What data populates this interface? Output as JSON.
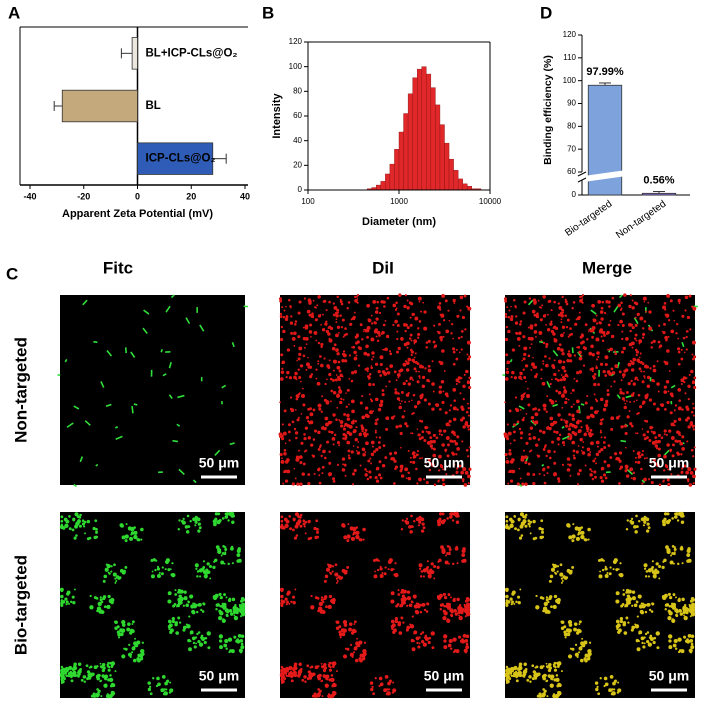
{
  "panel_labels": [
    "A",
    "B",
    "C",
    "D"
  ],
  "chart_data": [
    {
      "type": "bar",
      "orientation": "horizontal",
      "categories": [
        "BL+ICP-CLs@O₂",
        "BL",
        "ICP-CLs@O₂"
      ],
      "values": [
        -2,
        -28,
        28
      ],
      "errors": [
        4,
        3,
        5
      ],
      "colors": [
        "#ebe7dd",
        "#c4a97c",
        "#2f5cb6"
      ],
      "xlabel": "Apparent Zeta Potential (mV)",
      "xlim": [
        -40,
        40
      ],
      "xticks": [
        -40,
        -20,
        0,
        20,
        40
      ]
    },
    {
      "type": "histogram",
      "xscale": "log",
      "bins": [
        398,
        447,
        501,
        562,
        631,
        708,
        794,
        891,
        1000,
        1122,
        1259,
        1413,
        1585,
        1778,
        1995,
        2239,
        2512,
        2818,
        3162,
        3548,
        3981,
        4467,
        5012,
        5623,
        6310,
        7079,
        7943,
        8913
      ],
      "values": [
        0,
        1,
        2,
        4,
        7,
        13,
        21,
        33,
        47,
        62,
        78,
        91,
        98,
        100,
        94,
        83,
        69,
        53,
        38,
        25,
        16,
        9,
        5,
        3,
        1,
        1,
        0
      ],
      "color": "#e0282a",
      "xlabel": "Diameter (nm)",
      "ylabel": "Intensity",
      "xlim": [
        100,
        10000
      ],
      "xticks": [
        100,
        1000,
        10000
      ],
      "ylim": [
        0,
        120
      ],
      "yticks": [
        0,
        20,
        40,
        60,
        80,
        100,
        120
      ]
    },
    {
      "type": "bar",
      "orientation": "vertical",
      "categories": [
        "Bio-targeted",
        "Non-targeted"
      ],
      "values": [
        97.99,
        0.56
      ],
      "errors": [
        1,
        0.6
      ],
      "value_labels": [
        "97.99%",
        "0.56%"
      ],
      "colors": [
        "#7ea2dc",
        "#8b6fd3"
      ],
      "ylabel": "Binding efficiency (%)",
      "ylim": [
        0,
        120
      ],
      "ybreak": [
        5,
        60
      ],
      "yticks": [
        0,
        60,
        70,
        80,
        90,
        100,
        110,
        120
      ]
    }
  ],
  "micrographs": {
    "columns": [
      "Fitc",
      "DiI",
      "Merge"
    ],
    "rows": [
      "Non-targeted",
      "Bio-targeted"
    ],
    "scale_bar": "50 μm"
  }
}
